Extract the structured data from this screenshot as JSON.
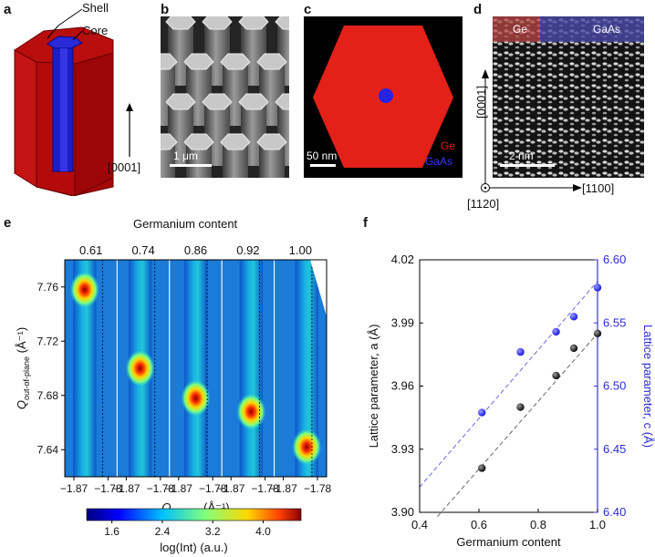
{
  "panels": {
    "a": {
      "letter": "a",
      "shell": "Shell",
      "core": "Core",
      "direction": "[0001]"
    },
    "b": {
      "letter": "b",
      "scale": "1 μm"
    },
    "c": {
      "letter": "c",
      "scale": "50 nm",
      "ge": "Ge",
      "gaas": "GaAs"
    },
    "d": {
      "letter": "d",
      "ge": "Ge",
      "gaas": "GaAs",
      "scale": "2 nm",
      "dir_vertical": "[0001]",
      "dir_horizontal": "[1100]",
      "dir_out": "[1120]"
    },
    "e": {
      "letter": "e"
    },
    "f": {
      "letter": "f"
    }
  },
  "colors": {
    "shell_red": "#b30b0b",
    "core_blue": "#2a2ad8",
    "ge_red": "#e32119",
    "gaas_blue": "#2323e6",
    "fit_blue": "#6a6ae0"
  },
  "chart_data": [
    {
      "type": "heatmap",
      "title": "Germanium content",
      "columns": [
        "0.61",
        "0.74",
        "0.86",
        "0.92",
        "1.00"
      ],
      "ylabel_main": "Q",
      "ylabel_sub": "out-of-plane",
      "ylabel_unit": "(Å⁻¹)",
      "yticks": [
        "7.76",
        "7.72",
        "7.68",
        "7.64"
      ],
      "ylim": [
        7.62,
        7.78
      ],
      "xlabel_main": "Q",
      "xlabel_sub": "in-plane",
      "xlabel_unit": "(Å⁻¹)",
      "xticks": [
        "−1.87",
        "−1.78"
      ],
      "peaks": [
        {
          "content": 0.61,
          "q_out": 7.758,
          "q_in": -1.845
        },
        {
          "content": 0.74,
          "q_out": 7.7,
          "q_in": -1.815
        },
        {
          "content": 0.86,
          "q_out": 7.678,
          "q_in": -1.805
        },
        {
          "content": 0.92,
          "q_out": 7.668,
          "q_in": -1.795
        },
        {
          "content": 1.0,
          "q_out": 7.642,
          "q_in": -1.78
        }
      ],
      "colorbar": {
        "ticks": [
          "1.6",
          "2.4",
          "3.2",
          "4.0"
        ],
        "label": "log(Int) (a.u.)",
        "range": [
          1.2,
          4.6
        ]
      }
    },
    {
      "type": "scatter",
      "xlabel": "Germanium content",
      "ylabel_left": "Lattice parameter, a (Å)",
      "ylabel_right": "Lattice parameter, c (Å)",
      "xlim": [
        0.4,
        1.0
      ],
      "xticks": [
        "0.4",
        "0.6",
        "0.8",
        "1.0"
      ],
      "ylim_left": [
        3.9,
        4.02
      ],
      "yticks_left": [
        "3.90",
        "3.93",
        "3.96",
        "3.99",
        "4.02"
      ],
      "ylim_right": [
        6.4,
        6.6
      ],
      "yticks_right": [
        "6.40",
        "6.45",
        "6.50",
        "6.55",
        "6.60"
      ],
      "series": [
        {
          "axis": "left",
          "x": [
            0.61,
            0.74,
            0.86,
            0.92,
            1.0
          ],
          "y": [
            3.921,
            3.95,
            3.965,
            3.978,
            3.985
          ]
        },
        {
          "axis": "right",
          "x": [
            0.61,
            0.74,
            0.86,
            0.92,
            1.0
          ],
          "y": [
            6.479,
            6.527,
            6.543,
            6.555,
            6.578
          ]
        }
      ],
      "fits": [
        {
          "axis": "left",
          "x": [
            0.46,
            1.0
          ],
          "y": [
            3.898,
            3.985
          ]
        },
        {
          "axis": "right",
          "x": [
            0.4,
            1.0
          ],
          "y": [
            6.42,
            6.583
          ]
        }
      ]
    }
  ]
}
